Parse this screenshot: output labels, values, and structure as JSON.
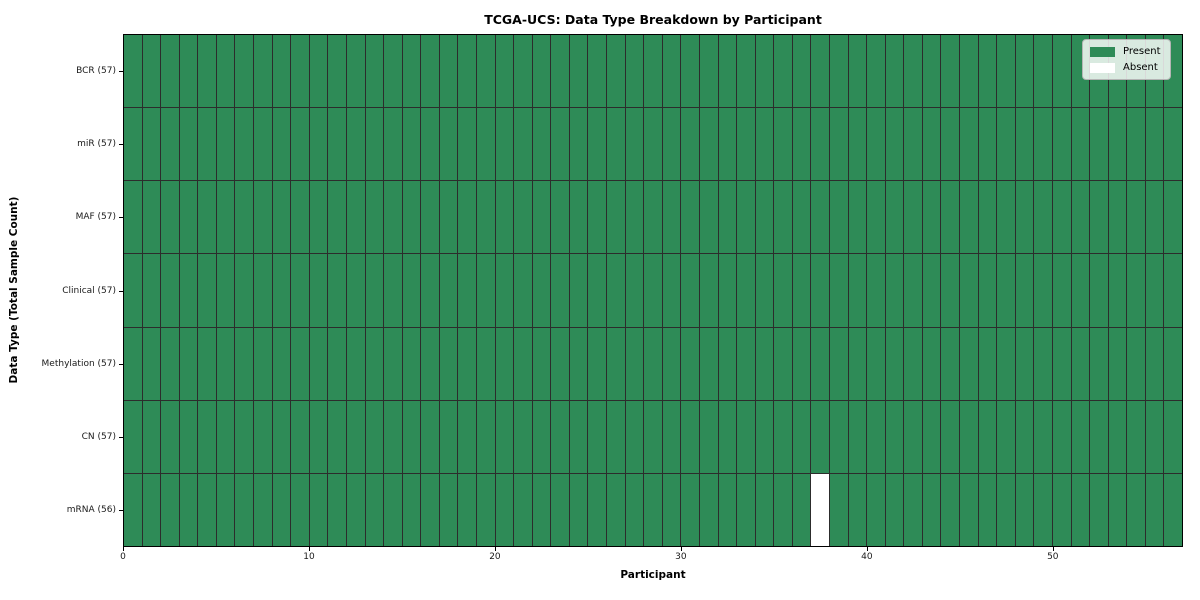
{
  "chart_data": {
    "type": "heatmap",
    "title": "TCGA-UCS: Data Type Breakdown by Participant",
    "xlabel": "Participant",
    "ylabel": "Data Type (Total Sample Count)",
    "n_participants": 57,
    "xlim": [
      0,
      57
    ],
    "x_ticks": [
      0,
      10,
      20,
      30,
      40,
      50
    ],
    "rows": [
      {
        "label": "BCR (57)",
        "data_type": "BCR",
        "present_count": 57
      },
      {
        "label": "miR (57)",
        "data_type": "miR",
        "present_count": 57
      },
      {
        "label": "MAF (57)",
        "data_type": "MAF",
        "present_count": 57
      },
      {
        "label": "Clinical (57)",
        "data_type": "Clinical",
        "present_count": 57
      },
      {
        "label": "Methylation (57)",
        "data_type": "Methylation",
        "present_count": 57
      },
      {
        "label": "CN (57)",
        "data_type": "CN",
        "present_count": 57
      },
      {
        "label": "mRNA (56)",
        "data_type": "mRNA",
        "present_count": 56
      }
    ],
    "absent_cells": [
      {
        "row_label": "mRNA (56)",
        "participant_index": 37
      }
    ],
    "legend": {
      "position": "upper right",
      "entries": [
        {
          "label": "Present",
          "color": "#2e8b57"
        },
        {
          "label": "Absent",
          "color": "#ffffff"
        }
      ]
    },
    "colors": {
      "present": "#2e8b57",
      "absent": "#ffffff",
      "cell_edge": "#2c2c2c",
      "spine": "#000000"
    },
    "grid": "cell-edges"
  }
}
